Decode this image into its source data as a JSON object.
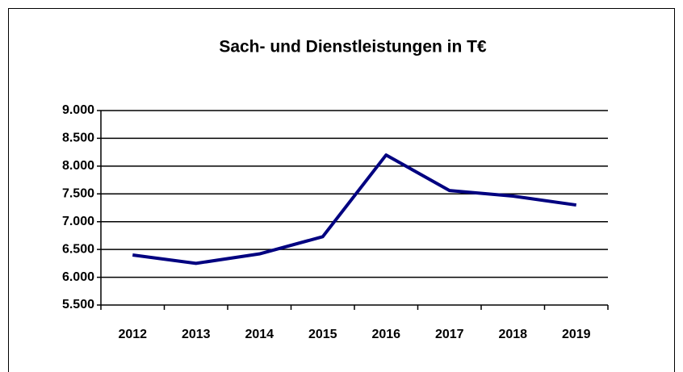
{
  "chart_data": {
    "type": "line",
    "title": "Sach- und Dienstleistungen in T€",
    "categories": [
      "2012",
      "2013",
      "2014",
      "2015",
      "2016",
      "2017",
      "2018",
      "2019"
    ],
    "series": [
      {
        "name": "Sach- und Dienstleistungen",
        "color": "#000080",
        "values": [
          6400,
          6250,
          6420,
          6730,
          8200,
          7560,
          7460,
          7300
        ]
      }
    ],
    "ylim": [
      5500,
      9000
    ],
    "yticks": [
      {
        "value": 5500,
        "label": "5.500"
      },
      {
        "value": 6000,
        "label": "6.000"
      },
      {
        "value": 6500,
        "label": "6.500"
      },
      {
        "value": 7000,
        "label": "7.000"
      },
      {
        "value": 7500,
        "label": "7.500"
      },
      {
        "value": 8000,
        "label": "8.000"
      },
      {
        "value": 8500,
        "label": "8.500"
      },
      {
        "value": 9000,
        "label": "9.000"
      }
    ],
    "grid": true
  }
}
